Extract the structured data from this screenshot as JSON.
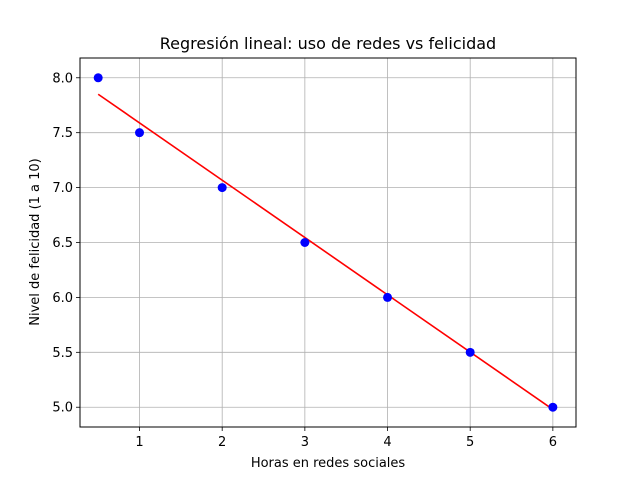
{
  "chart_data": {
    "type": "scatter",
    "title": "Regresión lineal: uso de redes vs felicidad",
    "xlabel": "Horas en redes sociales",
    "ylabel": "Nivel de felicidad (1 a 10)",
    "xlim": [
      0.28,
      6.28
    ],
    "ylim": [
      4.82,
      8.18
    ],
    "x_ticks": [
      1,
      2,
      3,
      4,
      5,
      6
    ],
    "x_tick_labels": [
      "1",
      "2",
      "3",
      "4",
      "5",
      "6"
    ],
    "y_ticks": [
      5.0,
      5.5,
      6.0,
      6.5,
      7.0,
      7.5,
      8.0
    ],
    "y_tick_labels": [
      "5.0",
      "5.5",
      "6.0",
      "6.5",
      "7.0",
      "7.5",
      "8.0"
    ],
    "grid": true,
    "series": [
      {
        "type": "scatter",
        "color": "#0000ff",
        "points": [
          {
            "x": 0.5,
            "y": 8.0
          },
          {
            "x": 1,
            "y": 7.5
          },
          {
            "x": 2,
            "y": 7.0
          },
          {
            "x": 3,
            "y": 6.5
          },
          {
            "x": 4,
            "y": 6.0
          },
          {
            "x": 5,
            "y": 5.5
          },
          {
            "x": 6,
            "y": 5.0
          }
        ]
      },
      {
        "type": "line",
        "color": "#ff0000",
        "points": [
          {
            "x": 0.5,
            "y": 7.85
          },
          {
            "x": 6,
            "y": 4.98
          }
        ]
      }
    ]
  }
}
